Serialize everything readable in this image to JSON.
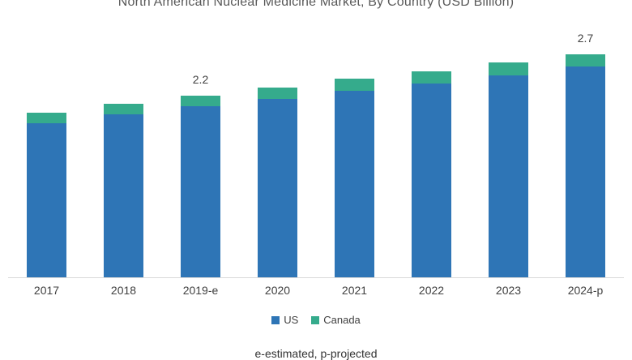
{
  "chart_data": {
    "type": "bar",
    "stacked": true,
    "title": "North American Nuclear Medicine Market, By Country (USD Billion)",
    "categories": [
      "2017",
      "2018",
      "2019-e",
      "2020",
      "2021",
      "2022",
      "2023",
      "2024-p"
    ],
    "series": [
      {
        "name": "US",
        "color": "#2e75b6",
        "values": [
          1.87,
          1.98,
          2.07,
          2.16,
          2.26,
          2.35,
          2.45,
          2.55
        ]
      },
      {
        "name": "Canada",
        "color": "#35ab8c",
        "values": [
          0.13,
          0.12,
          0.13,
          0.14,
          0.15,
          0.15,
          0.15,
          0.15
        ]
      }
    ],
    "totals": [
      2.0,
      2.1,
      2.2,
      2.3,
      2.4,
      2.5,
      2.6,
      2.7
    ],
    "bar_labels": [
      "",
      "",
      "2.2",
      "",
      "",
      "",
      "",
      "2.7"
    ],
    "xlabel": "",
    "ylabel": "",
    "ylim": [
      0,
      3.36
    ],
    "grid": false,
    "legend_position": "bottom",
    "axis_line_color": "#d9d9d9"
  },
  "footnote": "e-estimated, p-projected"
}
